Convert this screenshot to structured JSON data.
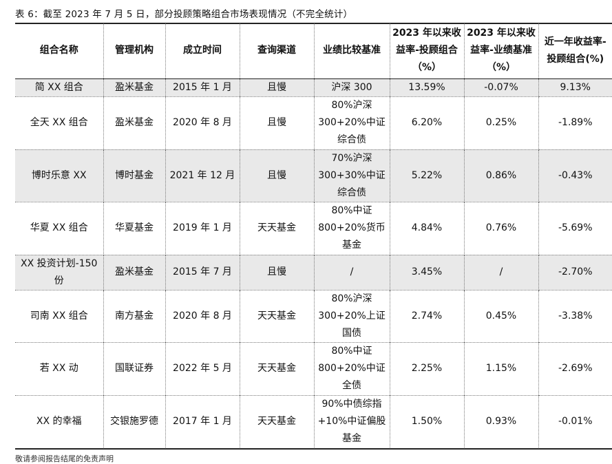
{
  "caption": "表 6：截至 2023 年 7 月 5 日，部分投顾策略组合市场表现情况（不完全统计）",
  "headers": [
    "组合名称",
    "管理机构",
    "成立时间",
    "查询渠道",
    "业绩比较基准",
    "2023 年以来收益率-投顾组合（%）",
    "2023 年以来收益率-业绩基准（%）",
    "近一年收益率-投顾组合(%)"
  ],
  "rows": [
    {
      "name": "简 XX 组合",
      "org": "盈米基金",
      "date": "2015 年 1 月",
      "channel": "且慢",
      "bench": "沪深 300",
      "r1": "13.59%",
      "r2": "-0.07%",
      "r3": "9.13%"
    },
    {
      "name": "全天 XX 组合",
      "org": "盈米基金",
      "date": "2020 年 8 月",
      "channel": "且慢",
      "bench": "80%沪深300+20%中证综合债",
      "r1": "6.20%",
      "r2": "0.25%",
      "r3": "-1.89%"
    },
    {
      "name": "博时乐意 XX",
      "org": "博时基金",
      "date": "2021 年 12 月",
      "channel": "且慢",
      "bench": "70%沪深300+30%中证综合债",
      "r1": "5.22%",
      "r2": "0.86%",
      "r3": "-0.43%"
    },
    {
      "name": "华夏 XX 组合",
      "org": "华夏基金",
      "date": "2019 年 1 月",
      "channel": "天天基金",
      "bench": "80%中证800+20%货币基金",
      "r1": "4.84%",
      "r2": "0.76%",
      "r3": "-5.69%"
    },
    {
      "name": "XX 投资计划-150 份",
      "org": "盈米基金",
      "date": "2015 年 7 月",
      "channel": "且慢",
      "bench": "/",
      "r1": "3.45%",
      "r2": "/",
      "r3": "-2.70%"
    },
    {
      "name": "司南 XX 组合",
      "org": "南方基金",
      "date": "2020 年 8 月",
      "channel": "天天基金",
      "bench": "80%沪深300+20%上证国债",
      "r1": "2.74%",
      "r2": "0.45%",
      "r3": "-3.38%"
    },
    {
      "name": "若 XX 动",
      "org": "国联证券",
      "date": "2022 年 5 月",
      "channel": "天天基金",
      "bench": "80%中证800+20%中证全债",
      "r1": "2.25%",
      "r2": "1.15%",
      "r3": "-2.69%"
    },
    {
      "name": "XX 的幸福",
      "org": "交银施罗德",
      "date": "2017 年 1 月",
      "channel": "天天基金",
      "bench": "90%中债综指+10%中证偏股基金",
      "r1": "1.50%",
      "r2": "0.93%",
      "r3": "-0.01%"
    }
  ],
  "footer": "敬请参阅报告结尾的免责声明"
}
